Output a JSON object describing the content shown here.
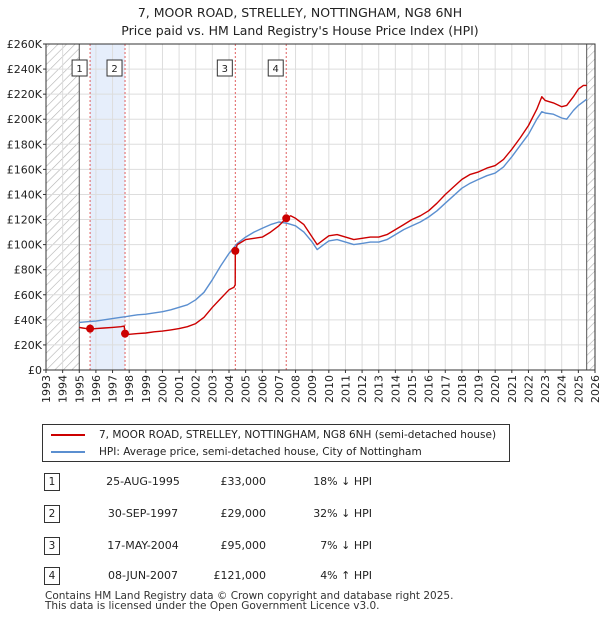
{
  "title": "7, MOOR ROAD, STRELLEY, NOTTINGHAM, NG8 6NH",
  "subtitle": "Price paid vs. HM Land Registry's House Price Index (HPI)",
  "colors": {
    "property": "#cc0000",
    "hpi": "#5b8fd0",
    "sale_band": "#e6eefb",
    "grid": "#dddddd",
    "hatch": "#b0b0b0",
    "sale_marker_line": "#e06060"
  },
  "chart_data": {
    "type": "line",
    "xlim": [
      1993,
      2026
    ],
    "ylim": [
      0,
      260000
    ],
    "y_ticks": [
      0,
      20000,
      40000,
      60000,
      80000,
      100000,
      120000,
      140000,
      160000,
      180000,
      200000,
      220000,
      240000,
      260000
    ],
    "y_tick_labels": [
      "£0",
      "£20K",
      "£40K",
      "£60K",
      "£80K",
      "£100K",
      "£120K",
      "£140K",
      "£160K",
      "£180K",
      "£200K",
      "£220K",
      "£240K",
      "£260K"
    ],
    "x_ticks": [
      1993,
      1994,
      1995,
      1996,
      1997,
      1998,
      1999,
      2000,
      2001,
      2002,
      2003,
      2004,
      2005,
      2006,
      2007,
      2008,
      2009,
      2010,
      2011,
      2012,
      2013,
      2014,
      2015,
      2016,
      2017,
      2018,
      2019,
      2020,
      2021,
      2022,
      2023,
      2024,
      2025,
      2026
    ],
    "x_tick_labels": [
      "1993",
      "1994",
      "1995",
      "1996",
      "1997",
      "1998",
      "1999",
      "2000",
      "2001",
      "2002",
      "2003",
      "2004",
      "2005",
      "2006",
      "2007",
      "2008",
      "2009",
      "2010",
      "2011",
      "2012",
      "2013",
      "2014",
      "2015",
      "2016",
      "2017",
      "2018",
      "2019",
      "2020",
      "2021",
      "2022",
      "2023",
      "2024",
      "2025",
      "2026"
    ],
    "data_start": 1995.0,
    "data_end": 2025.5,
    "series": [
      {
        "name": "7, MOOR ROAD, STRELLEY, NOTTINGHAM, NG8 6NH (semi-detached house)",
        "color": "#cc0000",
        "points": [
          [
            1995.0,
            34000
          ],
          [
            1995.2,
            33500
          ],
          [
            1995.42,
            33000
          ],
          [
            1995.6,
            32500
          ],
          [
            1996.0,
            33000
          ],
          [
            1996.5,
            33500
          ],
          [
            1997.0,
            34000
          ],
          [
            1997.5,
            34500
          ],
          [
            1997.7,
            35000
          ],
          [
            1997.75,
            29000
          ],
          [
            1998.0,
            28500
          ],
          [
            1998.5,
            29000
          ],
          [
            1999.0,
            29500
          ],
          [
            1999.5,
            30500
          ],
          [
            2000.0,
            31000
          ],
          [
            2000.5,
            32000
          ],
          [
            2001.0,
            33000
          ],
          [
            2001.5,
            34500
          ],
          [
            2002.0,
            37000
          ],
          [
            2002.5,
            42000
          ],
          [
            2003.0,
            50000
          ],
          [
            2003.5,
            57000
          ],
          [
            2004.0,
            64000
          ],
          [
            2004.3,
            66000
          ],
          [
            2004.37,
            68000
          ],
          [
            2004.38,
            95000
          ],
          [
            2004.5,
            100000
          ],
          [
            2005.0,
            104000
          ],
          [
            2005.5,
            105000
          ],
          [
            2006.0,
            106000
          ],
          [
            2006.5,
            110000
          ],
          [
            2007.0,
            115000
          ],
          [
            2007.44,
            121000
          ],
          [
            2007.7,
            123000
          ],
          [
            2008.0,
            121000
          ],
          [
            2008.5,
            116000
          ],
          [
            2009.0,
            106000
          ],
          [
            2009.3,
            100000
          ],
          [
            2009.7,
            104000
          ],
          [
            2010.0,
            107000
          ],
          [
            2010.5,
            108000
          ],
          [
            2011.0,
            106000
          ],
          [
            2011.5,
            104000
          ],
          [
            2012.0,
            105000
          ],
          [
            2012.5,
            106000
          ],
          [
            2013.0,
            106000
          ],
          [
            2013.5,
            108000
          ],
          [
            2014.0,
            112000
          ],
          [
            2014.5,
            116000
          ],
          [
            2015.0,
            120000
          ],
          [
            2015.5,
            123000
          ],
          [
            2016.0,
            127000
          ],
          [
            2016.5,
            133000
          ],
          [
            2017.0,
            140000
          ],
          [
            2017.5,
            146000
          ],
          [
            2018.0,
            152000
          ],
          [
            2018.5,
            156000
          ],
          [
            2019.0,
            158000
          ],
          [
            2019.5,
            161000
          ],
          [
            2020.0,
            163000
          ],
          [
            2020.5,
            168000
          ],
          [
            2021.0,
            176000
          ],
          [
            2021.5,
            185000
          ],
          [
            2022.0,
            195000
          ],
          [
            2022.5,
            208000
          ],
          [
            2022.8,
            218000
          ],
          [
            2023.0,
            215000
          ],
          [
            2023.5,
            213000
          ],
          [
            2024.0,
            210000
          ],
          [
            2024.3,
            211000
          ],
          [
            2024.7,
            218000
          ],
          [
            2025.0,
            224000
          ],
          [
            2025.3,
            227000
          ],
          [
            2025.5,
            227000
          ]
        ]
      },
      {
        "name": "HPI: Average price, semi-detached house, City of Nottingham",
        "color": "#5b8fd0",
        "points": [
          [
            1995.0,
            38000
          ],
          [
            1995.5,
            38500
          ],
          [
            1996.0,
            39000
          ],
          [
            1996.5,
            40000
          ],
          [
            1997.0,
            41000
          ],
          [
            1997.5,
            42000
          ],
          [
            1998.0,
            43000
          ],
          [
            1998.5,
            44000
          ],
          [
            1999.0,
            44500
          ],
          [
            1999.5,
            45500
          ],
          [
            2000.0,
            46500
          ],
          [
            2000.5,
            48000
          ],
          [
            2001.0,
            50000
          ],
          [
            2001.5,
            52000
          ],
          [
            2002.0,
            56000
          ],
          [
            2002.5,
            62000
          ],
          [
            2003.0,
            72000
          ],
          [
            2003.5,
            83000
          ],
          [
            2004.0,
            93000
          ],
          [
            2004.5,
            101000
          ],
          [
            2005.0,
            106000
          ],
          [
            2005.5,
            110000
          ],
          [
            2006.0,
            113000
          ],
          [
            2006.5,
            116000
          ],
          [
            2007.0,
            118000
          ],
          [
            2007.5,
            117000
          ],
          [
            2008.0,
            115000
          ],
          [
            2008.5,
            110000
          ],
          [
            2009.0,
            102000
          ],
          [
            2009.3,
            96000
          ],
          [
            2009.7,
            100000
          ],
          [
            2010.0,
            103000
          ],
          [
            2010.5,
            104000
          ],
          [
            2011.0,
            102000
          ],
          [
            2011.5,
            100000
          ],
          [
            2012.0,
            101000
          ],
          [
            2012.5,
            102000
          ],
          [
            2013.0,
            102000
          ],
          [
            2013.5,
            104000
          ],
          [
            2014.0,
            108000
          ],
          [
            2014.5,
            112000
          ],
          [
            2015.0,
            115000
          ],
          [
            2015.5,
            118000
          ],
          [
            2016.0,
            122000
          ],
          [
            2016.5,
            127000
          ],
          [
            2017.0,
            133000
          ],
          [
            2017.5,
            139000
          ],
          [
            2018.0,
            145000
          ],
          [
            2018.5,
            149000
          ],
          [
            2019.0,
            152000
          ],
          [
            2019.5,
            155000
          ],
          [
            2020.0,
            157000
          ],
          [
            2020.5,
            162000
          ],
          [
            2021.0,
            170000
          ],
          [
            2021.5,
            179000
          ],
          [
            2022.0,
            188000
          ],
          [
            2022.5,
            200000
          ],
          [
            2022.8,
            206000
          ],
          [
            2023.0,
            205000
          ],
          [
            2023.5,
            204000
          ],
          [
            2024.0,
            201000
          ],
          [
            2024.3,
            200000
          ],
          [
            2024.7,
            207000
          ],
          [
            2025.0,
            211000
          ],
          [
            2025.3,
            214000
          ],
          [
            2025.5,
            216000
          ]
        ]
      }
    ],
    "sales": [
      {
        "id": "1",
        "x": 1995.65,
        "price": 33000
      },
      {
        "id": "2",
        "x": 1997.75,
        "price": 29000
      },
      {
        "id": "3",
        "x": 2004.38,
        "price": 95000
      },
      {
        "id": "4",
        "x": 2007.44,
        "price": 121000
      }
    ],
    "shaded_bands": [
      [
        1995.65,
        1997.75
      ]
    ]
  },
  "legend": {
    "property_label": "7, MOOR ROAD, STRELLEY, NOTTINGHAM, NG8 6NH (semi-detached house)",
    "hpi_label": "HPI: Average price, semi-detached house, City of Nottingham"
  },
  "sales_table": [
    {
      "num": "1",
      "date": "25-AUG-1995",
      "price": "£33,000",
      "hpi": "18% ↓ HPI"
    },
    {
      "num": "2",
      "date": "30-SEP-1997",
      "price": "£29,000",
      "hpi": "32% ↓ HPI"
    },
    {
      "num": "3",
      "date": "17-MAY-2004",
      "price": "£95,000",
      "hpi": "7% ↓ HPI"
    },
    {
      "num": "4",
      "date": "08-JUN-2007",
      "price": "£121,000",
      "hpi": "4% ↑ HPI"
    }
  ],
  "footer": {
    "line1": "Contains HM Land Registry data © Crown copyright and database right 2025.",
    "line2": "This data is licensed under the Open Government Licence v3.0."
  }
}
